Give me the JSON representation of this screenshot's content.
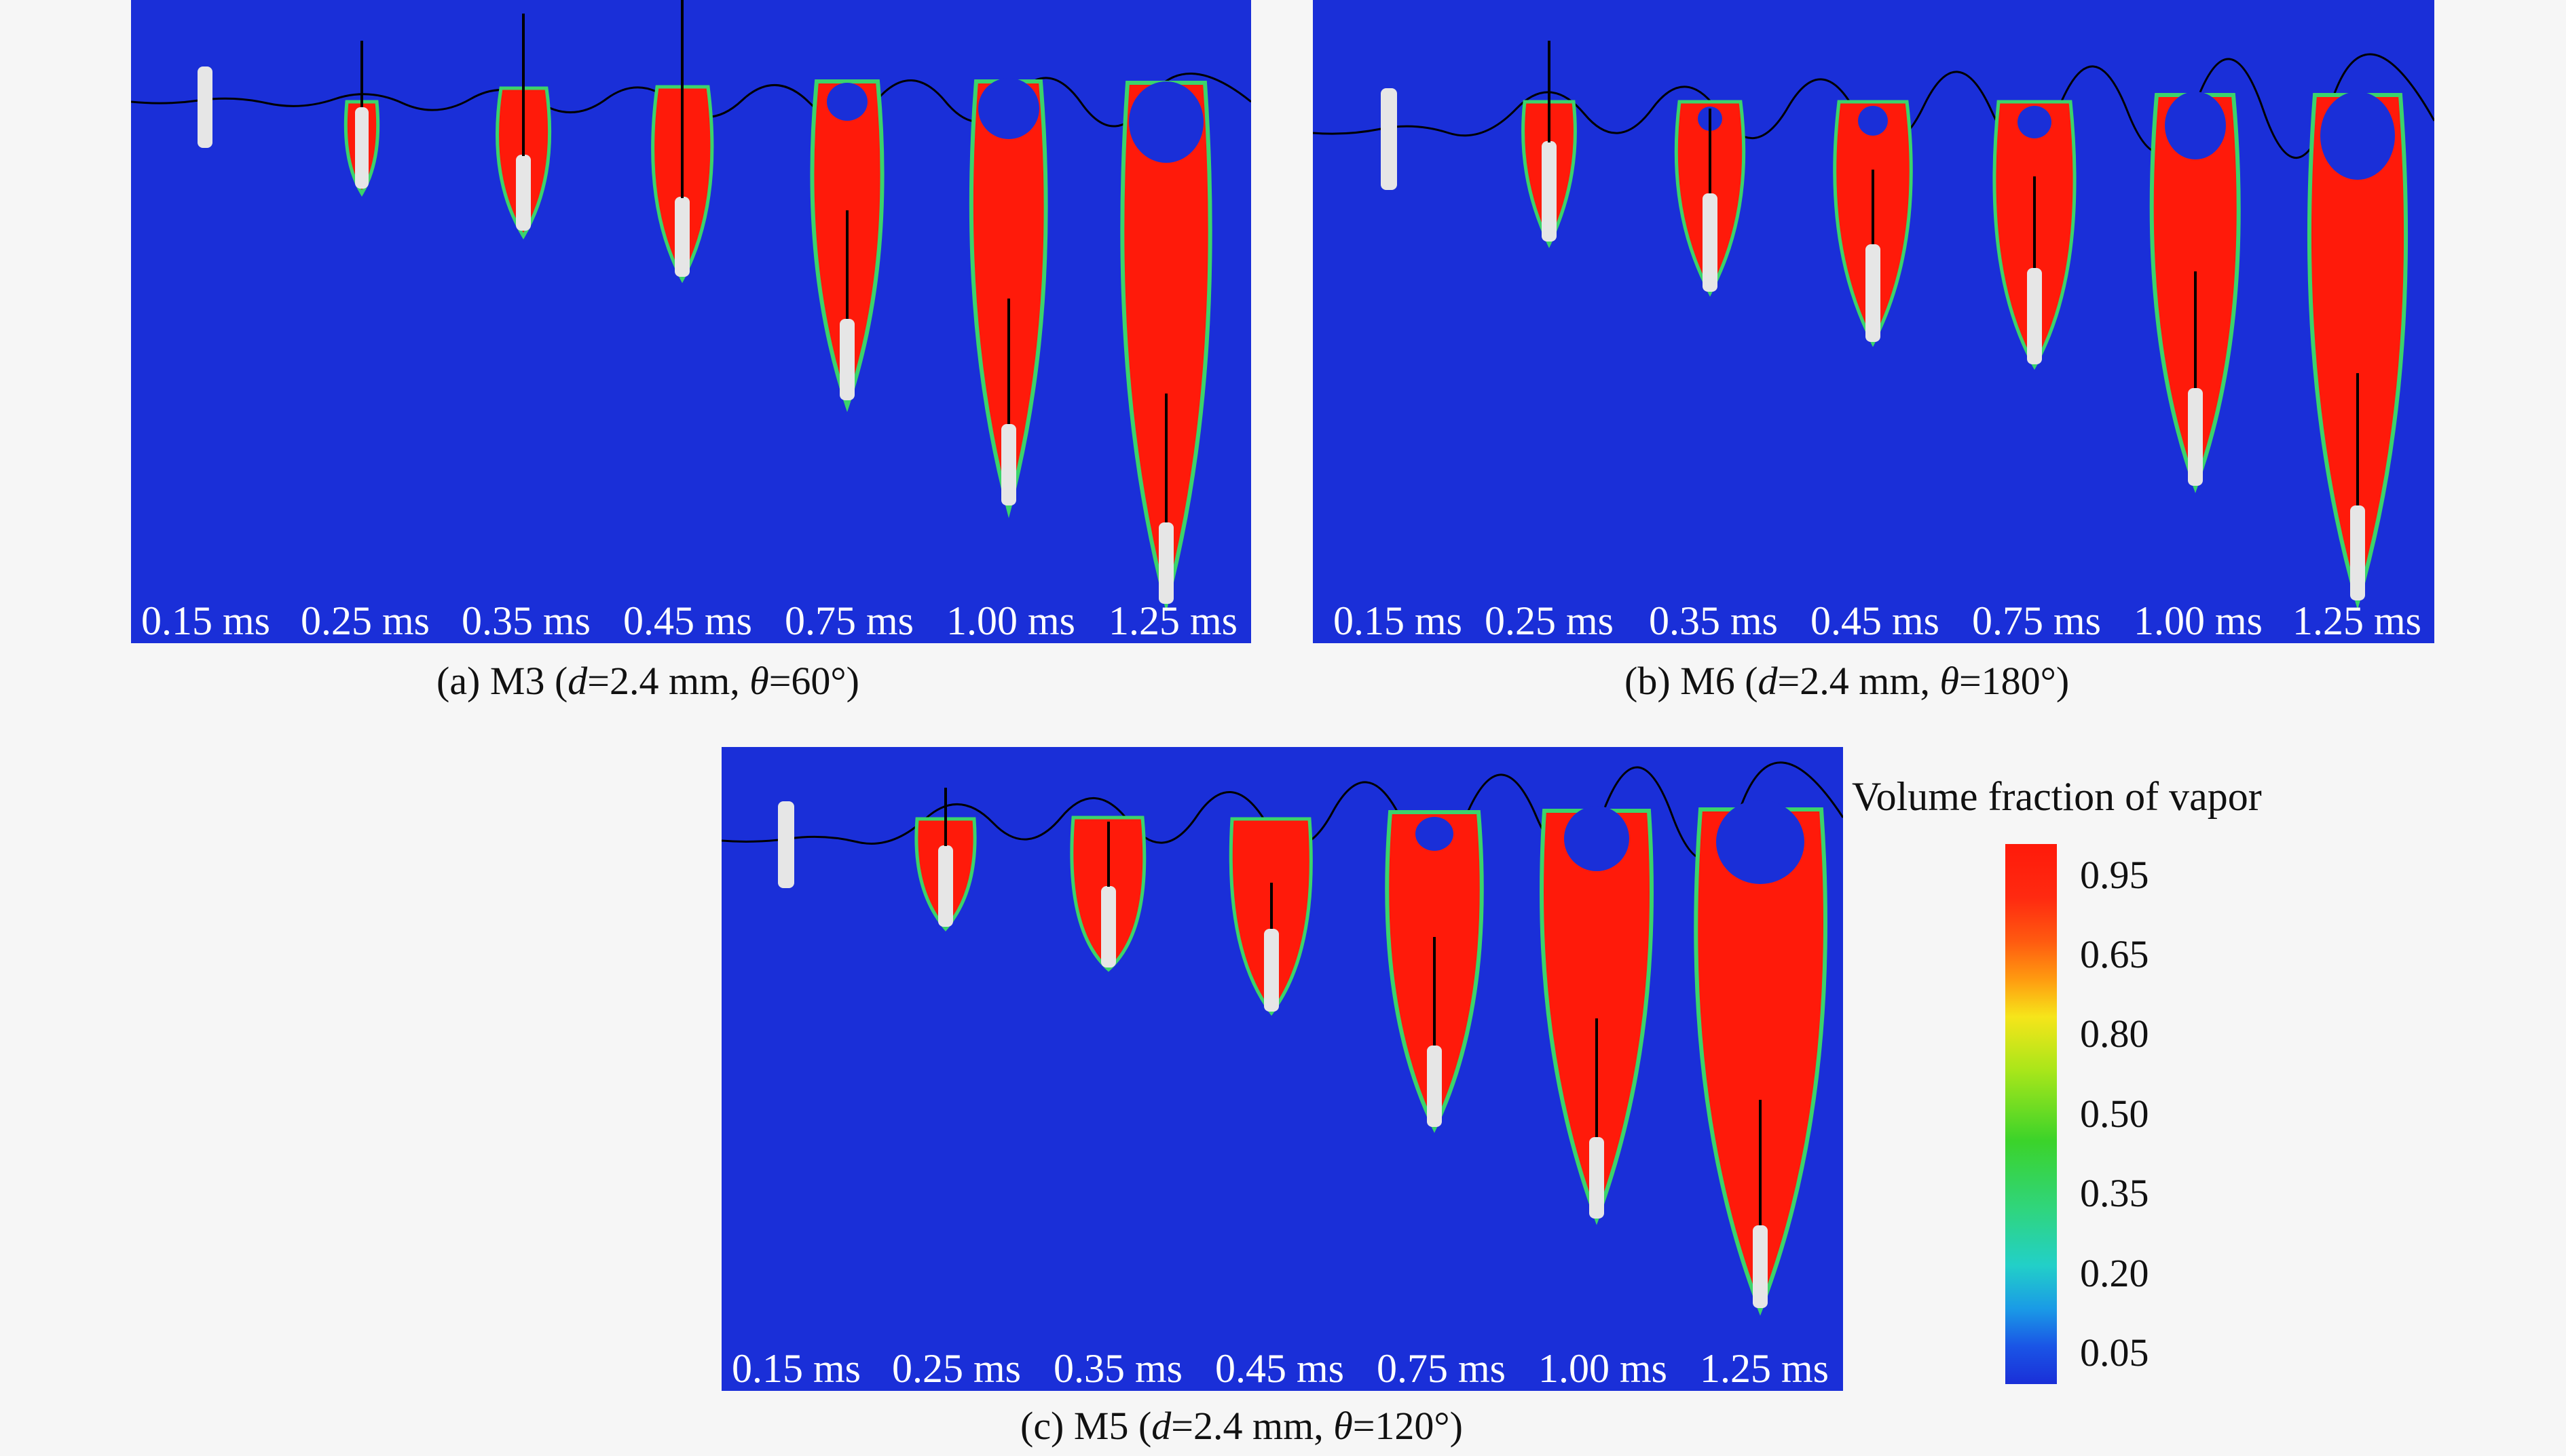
{
  "panels": [
    {
      "id": "a",
      "caption_prefix": "(a) M3 (",
      "caption_d_var": "d",
      "caption_d_val": "=2.4 mm, ",
      "caption_theta_var": "θ",
      "caption_theta_val": "=60°)",
      "times": [
        "0.15 ms",
        "0.25 ms",
        "0.35 ms",
        "0.45 ms",
        "0.75 ms",
        "1.00 ms",
        "1.25 ms"
      ]
    },
    {
      "id": "b",
      "caption_prefix": "(b) M6 (",
      "caption_d_var": "d",
      "caption_d_val": "=2.4 mm, ",
      "caption_theta_var": "θ",
      "caption_theta_val": "=180°)",
      "times": [
        "0.15 ms",
        "0.25 ms",
        "0.35 ms",
        "0.45 ms",
        "0.75 ms",
        "1.00 ms",
        "1.25 ms"
      ]
    },
    {
      "id": "c",
      "caption_prefix": "(c) M5 (",
      "caption_d_var": "d",
      "caption_d_val": "=2.4 mm, ",
      "caption_theta_var": "θ",
      "caption_theta_val": "=120°)",
      "times": [
        "0.15 ms",
        "0.25 ms",
        "0.35 ms",
        "0.45 ms",
        "0.75 ms",
        "1.00 ms",
        "1.25 ms"
      ]
    }
  ],
  "legend": {
    "title": "Volume fraction of vapor",
    "ticks": [
      "0.95",
      "0.65",
      "0.80",
      "0.50",
      "0.35",
      "0.20",
      "0.05"
    ]
  },
  "colors": {
    "background_water": "#1a2fd8",
    "vapor": "#ff1a0a",
    "projectile": "#e6e6e6"
  }
}
